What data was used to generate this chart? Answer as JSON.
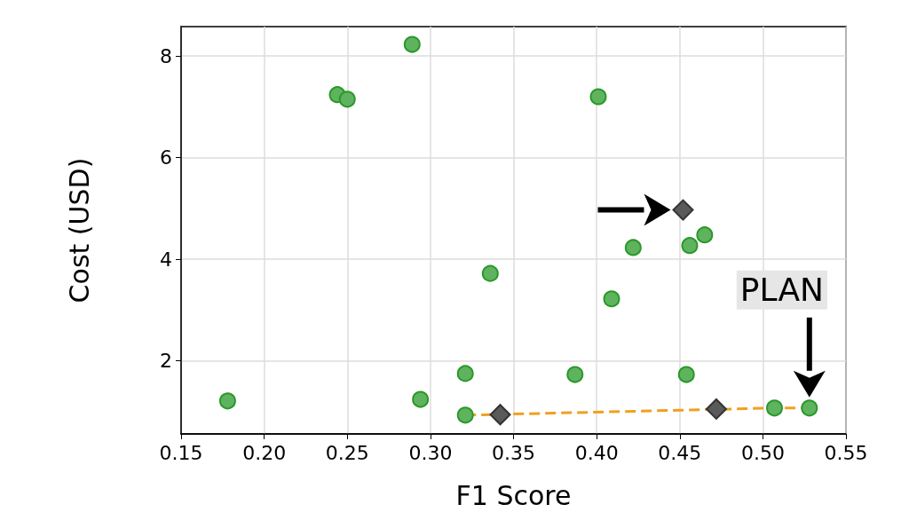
{
  "chart_data": {
    "type": "scatter",
    "xlabel": "F1 Score",
    "ylabel": "Cost (USD)",
    "xlim": [
      0.15,
      0.55
    ],
    "ylim": [
      0.56,
      8.58
    ],
    "xticks": [
      0.15,
      {
        "value": 0.2,
        "label": "0.20"
      },
      0.25,
      {
        "value": 0.3,
        "label": "0.30"
      },
      0.35,
      {
        "value": 0.4,
        "label": "0.40"
      },
      0.45,
      {
        "value": 0.5,
        "label": "0.50"
      },
      0.55
    ],
    "yticks": [
      2,
      4,
      6,
      8
    ],
    "grid": true,
    "series": [
      {
        "type": "line",
        "color": "#f0a020",
        "line_style": "dashed",
        "marker": "none",
        "x": [
          0.321,
          0.507,
          0.528
        ],
        "values": [
          0.93,
          1.07,
          1.07
        ]
      },
      {
        "color": "#5fb35f",
        "marker": "circle",
        "x": [
          0.178,
          0.244,
          0.25,
          0.289,
          0.294,
          0.321,
          0.321,
          0.336,
          0.387,
          0.401,
          0.409,
          0.422,
          0.454,
          0.456,
          0.465,
          0.507,
          0.528
        ],
        "values": [
          1.21,
          7.24,
          7.15,
          8.23,
          1.24,
          1.75,
          0.93,
          3.72,
          1.73,
          7.2,
          3.22,
          4.23,
          1.73,
          4.27,
          4.48,
          1.07,
          1.07
        ]
      },
      {
        "color": "#5a5a5a",
        "marker": "diamond",
        "x": [
          0.342,
          0.472,
          0.452
        ],
        "values": [
          0.94,
          1.05,
          4.97
        ]
      }
    ],
    "annotations": [
      "PLAN"
    ]
  }
}
